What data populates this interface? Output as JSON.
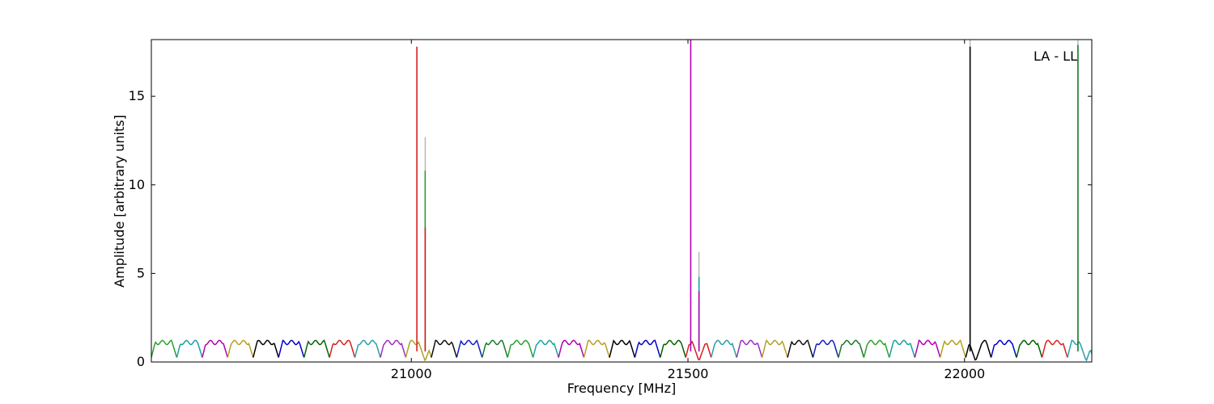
{
  "chart_data": {
    "type": "line",
    "xlabel": "Frequency [MHz]",
    "ylabel": "Amplitude [arbitrary units]",
    "annotation": "LA - LL",
    "xlim": [
      20530,
      22230
    ],
    "ylim": [
      0,
      18.2
    ],
    "x_ticks": [
      21000,
      21500,
      22000
    ],
    "x_tick_labels": [
      "21000",
      "21500",
      "22000"
    ],
    "y_ticks": [
      0,
      5,
      10,
      15
    ],
    "y_tick_labels": [
      "0",
      "5",
      "10",
      "15"
    ],
    "grid": false,
    "baseline": {
      "segment_width_mhz": 46,
      "plateau_level": 1.1,
      "dip_level": 0.25,
      "color_cycle": [
        "#2ca02c",
        "#17a2a2",
        "#b000b0",
        "#b5a020",
        "#000000",
        "#0000cc",
        "#006400",
        "#d62020",
        "#2b9fa8",
        "#9a2fc0",
        "#b0a028",
        "#111111",
        "#1020c0",
        "#1a7a2a"
      ]
    },
    "peaks": [
      {
        "x": 21010,
        "y": 17.8,
        "color": "#d62020"
      },
      {
        "x": 21025,
        "y": 12.7,
        "color": "#aaaaaa"
      },
      {
        "x": 21025,
        "y": 10.8,
        "color": "#2ca02c"
      },
      {
        "x": 21025,
        "y": 7.6,
        "color": "#d62020"
      },
      {
        "x": 21505,
        "y": 18.2,
        "color": "#b000b0"
      },
      {
        "x": 21520,
        "y": 6.2,
        "color": "#aaaaaa"
      },
      {
        "x": 21520,
        "y": 4.8,
        "color": "#17a2a2"
      },
      {
        "x": 21520,
        "y": 4.0,
        "color": "#b000b0"
      },
      {
        "x": 22010,
        "y": 18.2,
        "color": "#aaaaaa"
      },
      {
        "x": 22010,
        "y": 17.8,
        "color": "#000000"
      },
      {
        "x": 22205,
        "y": 18.2,
        "color": "#aaaaaa"
      },
      {
        "x": 22205,
        "y": 17.9,
        "color": "#1a7a2a"
      }
    ],
    "notch_centers": [
      21025,
      21520,
      22020,
      22220
    ]
  }
}
